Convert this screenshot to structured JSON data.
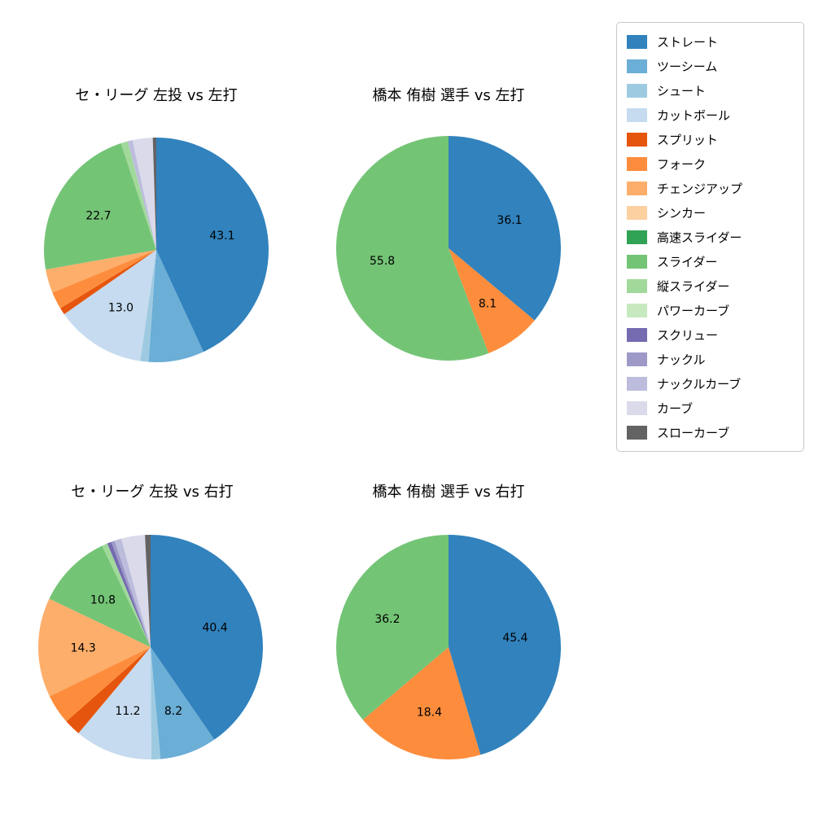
{
  "pitch_types": [
    {
      "name": "ストレート",
      "color": "#3182bd"
    },
    {
      "name": "ツーシーム",
      "color": "#6baed6"
    },
    {
      "name": "シュート",
      "color": "#9ecae1"
    },
    {
      "name": "カットボール",
      "color": "#c6dbef"
    },
    {
      "name": "スプリット",
      "color": "#e6550d"
    },
    {
      "name": "フォーク",
      "color": "#fd8d3c"
    },
    {
      "name": "チェンジアップ",
      "color": "#fdae6b"
    },
    {
      "name": "シンカー",
      "color": "#fdd0a2"
    },
    {
      "name": "高速スライダー",
      "color": "#31a354"
    },
    {
      "name": "スライダー",
      "color": "#74c476"
    },
    {
      "name": "縦スライダー",
      "color": "#a1d99b"
    },
    {
      "name": "パワーカーブ",
      "color": "#c7e9c0"
    },
    {
      "name": "スクリュー",
      "color": "#756bb1"
    },
    {
      "name": "ナックル",
      "color": "#9e9ac8"
    },
    {
      "name": "ナックルカーブ",
      "color": "#bcbddc"
    },
    {
      "name": "カーブ",
      "color": "#dadaeb"
    },
    {
      "name": "スローカーブ",
      "color": "#636363"
    }
  ],
  "chart_data": [
    {
      "type": "pie",
      "title": "セ・リーグ 左投 vs 左打",
      "value_unit": "%",
      "start_angle": "12-o-clock",
      "direction": "clockwise",
      "slices": [
        {
          "name": "ストレート",
          "value": 43.1,
          "label": "43.1"
        },
        {
          "name": "ツーシーム",
          "value": 8.0,
          "label": ""
        },
        {
          "name": "シュート",
          "value": 1.2,
          "label": ""
        },
        {
          "name": "カットボール",
          "value": 13.0,
          "label": "13.0"
        },
        {
          "name": "スプリット",
          "value": 1.0,
          "label": ""
        },
        {
          "name": "フォーク",
          "value": 2.5,
          "label": ""
        },
        {
          "name": "チェンジアップ",
          "value": 3.4,
          "label": ""
        },
        {
          "name": "スライダー",
          "value": 22.7,
          "label": "22.7"
        },
        {
          "name": "縦スライダー",
          "value": 1.0,
          "label": ""
        },
        {
          "name": "ナックルカーブ",
          "value": 0.7,
          "label": ""
        },
        {
          "name": "カーブ",
          "value": 2.9,
          "label": ""
        },
        {
          "name": "スローカーブ",
          "value": 0.5,
          "label": ""
        }
      ]
    },
    {
      "type": "pie",
      "title": "橋本 侑樹 選手 vs 左打",
      "value_unit": "%",
      "start_angle": "12-o-clock",
      "direction": "clockwise",
      "slices": [
        {
          "name": "ストレート",
          "value": 36.1,
          "label": "36.1"
        },
        {
          "name": "フォーク",
          "value": 8.1,
          "label": "8.1"
        },
        {
          "name": "スライダー",
          "value": 55.8,
          "label": "55.8"
        }
      ]
    },
    {
      "type": "pie",
      "title": "セ・リーグ 左投 vs 右打",
      "value_unit": "%",
      "start_angle": "12-o-clock",
      "direction": "clockwise",
      "slices": [
        {
          "name": "ストレート",
          "value": 40.4,
          "label": "40.4"
        },
        {
          "name": "ツーシーム",
          "value": 8.2,
          "label": "8.2"
        },
        {
          "name": "シュート",
          "value": 1.3,
          "label": ""
        },
        {
          "name": "カットボール",
          "value": 11.2,
          "label": "11.2"
        },
        {
          "name": "スプリット",
          "value": 2.4,
          "label": ""
        },
        {
          "name": "フォーク",
          "value": 4.3,
          "label": ""
        },
        {
          "name": "チェンジアップ",
          "value": 14.3,
          "label": "14.3"
        },
        {
          "name": "スライダー",
          "value": 10.8,
          "label": "10.8"
        },
        {
          "name": "縦スライダー",
          "value": 0.8,
          "label": ""
        },
        {
          "name": "スクリュー",
          "value": 0.6,
          "label": ""
        },
        {
          "name": "ナックル",
          "value": 0.5,
          "label": ""
        },
        {
          "name": "ナックルカーブ",
          "value": 1.0,
          "label": ""
        },
        {
          "name": "カーブ",
          "value": 3.4,
          "label": ""
        },
        {
          "name": "スローカーブ",
          "value": 0.8,
          "label": ""
        }
      ]
    },
    {
      "type": "pie",
      "title": "橋本 侑樹 選手 vs 右打",
      "value_unit": "%",
      "start_angle": "12-o-clock",
      "direction": "clockwise",
      "slices": [
        {
          "name": "ストレート",
          "value": 45.4,
          "label": "45.4"
        },
        {
          "name": "フォーク",
          "value": 18.4,
          "label": "18.4"
        },
        {
          "name": "スライダー",
          "value": 36.2,
          "label": "36.2"
        }
      ]
    }
  ],
  "legend": {
    "position": "top-right"
  }
}
